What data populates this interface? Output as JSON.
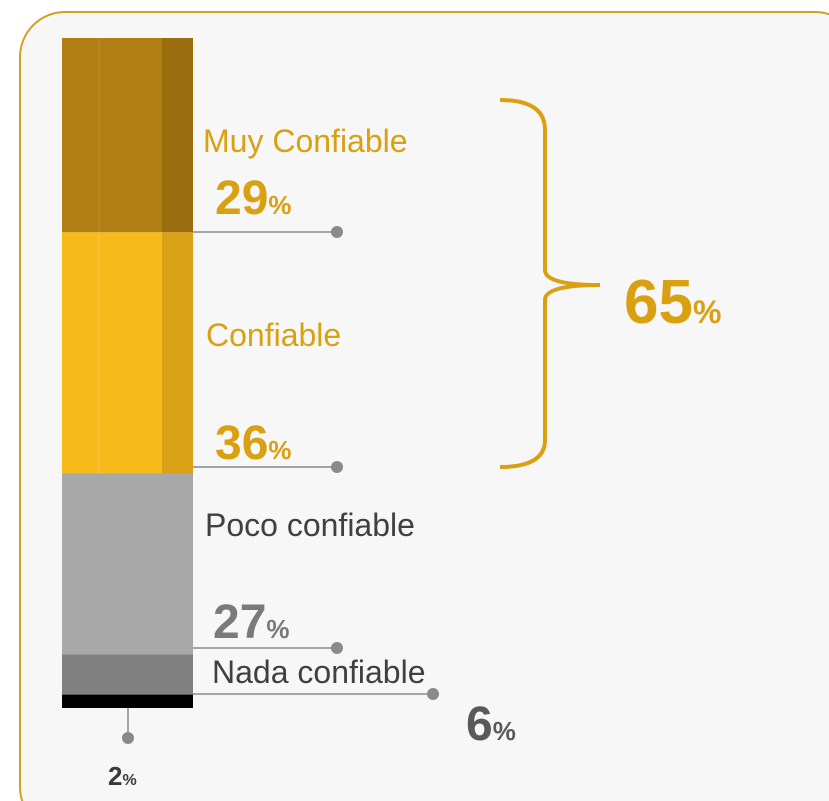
{
  "chart_data": {
    "type": "bar",
    "stacked": true,
    "ylim": [
      0,
      100
    ],
    "series": [
      {
        "name": "Muy Confiable",
        "color": "#b07e12",
        "text_color": "#d9a012",
        "values": [
          29
        ],
        "value_labels": [
          "29%"
        ]
      },
      {
        "name": "Confiable",
        "color": "#f8b91b",
        "text_color": "#d9a012",
        "values": [
          36
        ],
        "value_labels": [
          "36%"
        ]
      },
      {
        "name": "Poco confiable",
        "color": "#a8a8a8",
        "text_color": "#7a7a7a",
        "values": [
          27
        ],
        "value_labels": [
          "27%"
        ]
      },
      {
        "name": "Nada confiable",
        "color": "#808080",
        "text_color": "#5a5a5a",
        "values": [
          6
        ],
        "value_labels": [
          "6%"
        ]
      },
      {
        "color": "#000000",
        "text_color": "#3a3a3a",
        "values": [
          2
        ],
        "value_labels": [
          "2%"
        ]
      }
    ],
    "bracket": {
      "value": 65,
      "label": "65%",
      "color": "#d9a012"
    }
  }
}
